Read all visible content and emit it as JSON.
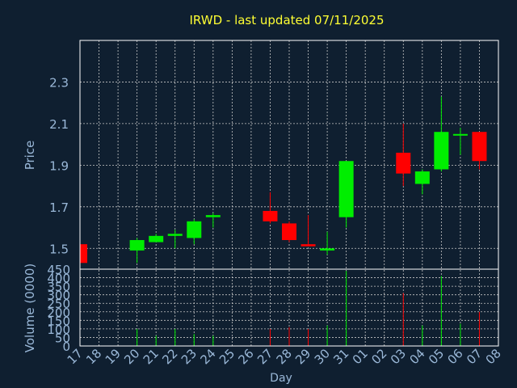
{
  "chart_data": {
    "type": "candlestick",
    "title": "IRWD - last updated 07/11/2025",
    "xlabel": "Day",
    "price_panel": {
      "ylabel": "Price",
      "ylim": [
        1.4,
        2.5
      ],
      "yticks": [
        1.5,
        1.7,
        1.9,
        2.1,
        2.3
      ]
    },
    "volume_panel": {
      "ylabel": "Volume (0000)",
      "ylim": [
        0,
        450
      ],
      "yticks": [
        0,
        50,
        100,
        150,
        200,
        250,
        300,
        350,
        400,
        450
      ]
    },
    "x_ticks": [
      "17",
      "18",
      "19",
      "20",
      "21",
      "22",
      "23",
      "24",
      "25",
      "26",
      "27",
      "28",
      "29",
      "30",
      "31",
      "01",
      "02",
      "03",
      "04",
      "05",
      "06",
      "07",
      "08"
    ],
    "candles": [
      {
        "day": "17",
        "open": 1.52,
        "high": 1.52,
        "low": 1.43,
        "close": 1.43,
        "volume": 0
      },
      {
        "day": "20",
        "open": 1.49,
        "high": 1.55,
        "low": 1.43,
        "close": 1.54,
        "volume": 100
      },
      {
        "day": "21",
        "open": 1.53,
        "high": 1.57,
        "low": 1.53,
        "close": 1.56,
        "volume": 60
      },
      {
        "day": "22",
        "open": 1.56,
        "high": 1.59,
        "low": 1.5,
        "close": 1.57,
        "volume": 100
      },
      {
        "day": "23",
        "open": 1.55,
        "high": 1.64,
        "low": 1.52,
        "close": 1.63,
        "volume": 70
      },
      {
        "day": "24",
        "open": 1.65,
        "high": 1.67,
        "low": 1.6,
        "close": 1.66,
        "volume": 60
      },
      {
        "day": "27",
        "open": 1.68,
        "high": 1.77,
        "low": 1.62,
        "close": 1.63,
        "volume": 100
      },
      {
        "day": "28",
        "open": 1.62,
        "high": 1.63,
        "low": 1.53,
        "close": 1.54,
        "volume": 110
      },
      {
        "day": "29",
        "open": 1.52,
        "high": 1.66,
        "low": 1.51,
        "close": 1.51,
        "volume": 100
      },
      {
        "day": "30",
        "open": 1.49,
        "high": 1.58,
        "low": 1.47,
        "close": 1.5,
        "volume": 120
      },
      {
        "day": "31",
        "open": 1.65,
        "high": 1.92,
        "low": 1.6,
        "close": 1.92,
        "volume": 440
      },
      {
        "day": "03",
        "open": 1.96,
        "high": 2.1,
        "low": 1.8,
        "close": 1.86,
        "volume": 310
      },
      {
        "day": "04",
        "open": 1.81,
        "high": 1.88,
        "low": 1.76,
        "close": 1.87,
        "volume": 120
      },
      {
        "day": "05",
        "open": 1.88,
        "high": 2.23,
        "low": 1.87,
        "close": 2.06,
        "volume": 410
      },
      {
        "day": "06",
        "open": 2.05,
        "high": 2.08,
        "low": 1.95,
        "close": 2.05,
        "volume": 130
      },
      {
        "day": "07",
        "open": 2.06,
        "high": 2.06,
        "low": 1.88,
        "close": 1.92,
        "volume": 200
      }
    ],
    "grid": true,
    "colors": {
      "background": "#0f1f30",
      "plot_border": "#ffffff",
      "grid": "#c8c8c8",
      "up": "#00ee00",
      "down": "#ff0000",
      "title": "#ffff33",
      "axis_text": "#9ab8d8"
    }
  }
}
